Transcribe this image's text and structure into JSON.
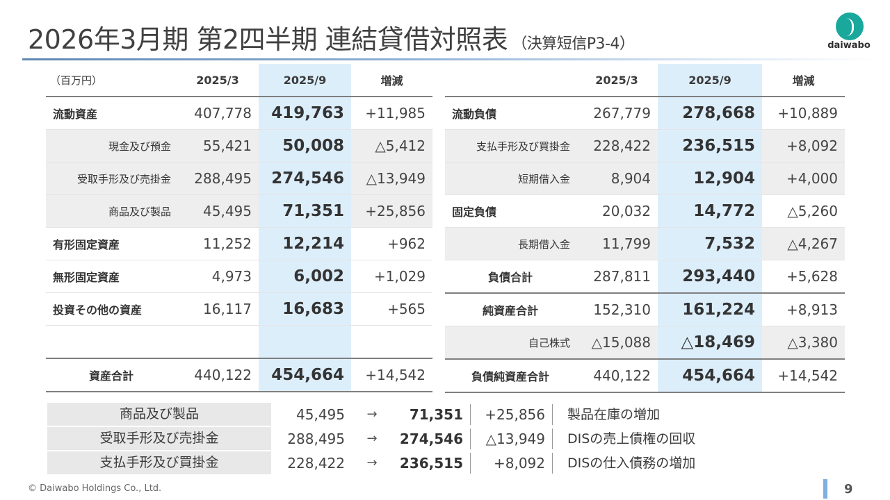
{
  "title": {
    "main": "2026年3月期 第2四半期 連結貸借対照表",
    "sub": "（決算短信P3-4）"
  },
  "logo": {
    "text": "daiwabo",
    "color": "#1aa89c"
  },
  "assets": {
    "unit": "（百万円）",
    "headers": [
      "2025/3",
      "2025/9",
      "増減"
    ],
    "rows": [
      {
        "label": "流動資産",
        "prev": "407,778",
        "cur": "419,763",
        "diff": "+11,985"
      },
      {
        "label": "現金及び預金",
        "prev": "55,421",
        "cur": "50,008",
        "diff": "△5,412"
      },
      {
        "label": "受取手形及び売掛金",
        "prev": "288,495",
        "cur": "274,546",
        "diff": "△13,949"
      },
      {
        "label": "商品及び製品",
        "prev": "45,495",
        "cur": "71,351",
        "diff": "+25,856"
      },
      {
        "label": "有形固定資産",
        "prev": "11,252",
        "cur": "12,214",
        "diff": "+962"
      },
      {
        "label": "無形固定資産",
        "prev": "4,973",
        "cur": "6,002",
        "diff": "+1,029"
      },
      {
        "label": "投資その他の資産",
        "prev": "16,117",
        "cur": "16,683",
        "diff": "+565"
      }
    ],
    "total": {
      "label": "資産合計",
      "prev": "440,122",
      "cur": "454,664",
      "diff": "+14,542"
    }
  },
  "liabilities": {
    "headers": [
      "2025/3",
      "2025/9",
      "増減"
    ],
    "rows": [
      {
        "label": "流動負債",
        "prev": "267,779",
        "cur": "278,668",
        "diff": "+10,889"
      },
      {
        "label": "支払手形及び買掛金",
        "prev": "228,422",
        "cur": "236,515",
        "diff": "+8,092"
      },
      {
        "label": "短期借入金",
        "prev": "8,904",
        "cur": "12,904",
        "diff": "+4,000"
      },
      {
        "label": "固定負債",
        "prev": "20,032",
        "cur": "14,772",
        "diff": "△5,260"
      },
      {
        "label": "長期借入金",
        "prev": "11,799",
        "cur": "7,532",
        "diff": "△4,267"
      },
      {
        "label": "負債合計",
        "prev": "287,811",
        "cur": "293,440",
        "diff": "+5,628"
      },
      {
        "label": "純資産合計",
        "prev": "152,310",
        "cur": "161,224",
        "diff": "+8,913"
      },
      {
        "label": "自己株式",
        "prev": "△15,088",
        "cur": "△18,469",
        "diff": "△3,380"
      }
    ],
    "total": {
      "label": "負債純資産合計",
      "prev": "440,122",
      "cur": "454,664",
      "diff": "+14,542"
    }
  },
  "summary": [
    {
      "label": "商品及び製品",
      "prev": "45,495",
      "arrow": "→",
      "cur": "71,351",
      "diff": "+25,856",
      "note": "製品在庫の増加"
    },
    {
      "label": "受取手形及び売掛金",
      "prev": "288,495",
      "arrow": "→",
      "cur": "274,546",
      "diff": "△13,949",
      "note": "DISの売上債権の回収"
    },
    {
      "label": "支払手形及び買掛金",
      "prev": "228,422",
      "arrow": "→",
      "cur": "236,515",
      "diff": "+8,092",
      "note": "DISの仕入債務の増加"
    }
  ],
  "footer": {
    "copyright": "© Daiwabo Holdings Co., Ltd.",
    "page": "9"
  }
}
